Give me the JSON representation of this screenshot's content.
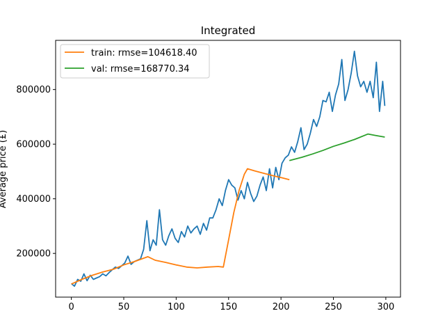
{
  "chart_data": {
    "type": "line",
    "title": "Integrated",
    "xlabel": "",
    "ylabel": "Average price (£)",
    "xlim": [
      -15,
      314
    ],
    "ylim": [
      40000,
      980000
    ],
    "xticks": [
      0,
      50,
      100,
      150,
      200,
      250,
      300
    ],
    "yticks": [
      200000,
      400000,
      600000,
      800000
    ],
    "ytick_labels": [
      "200000",
      "400000",
      "600000",
      "800000"
    ],
    "xtick_labels": [
      "0",
      "50",
      "100",
      "150",
      "200",
      "250",
      "300"
    ],
    "grid": false,
    "legend_position": "top-left",
    "series": [
      {
        "name": "",
        "color": "#1f77b4",
        "x": [
          0,
          3,
          6,
          9,
          12,
          15,
          18,
          21,
          24,
          27,
          30,
          33,
          36,
          39,
          42,
          45,
          48,
          51,
          54,
          57,
          60,
          63,
          66,
          69,
          72,
          75,
          78,
          81,
          84,
          87,
          90,
          93,
          96,
          99,
          102,
          105,
          108,
          111,
          114,
          117,
          120,
          123,
          126,
          129,
          132,
          135,
          138,
          141,
          144,
          147,
          150,
          153,
          156,
          159,
          162,
          165,
          168,
          171,
          174,
          177,
          180,
          183,
          186,
          189,
          192,
          195,
          198,
          201,
          204,
          207,
          210,
          213,
          216,
          219,
          222,
          225,
          228,
          231,
          234,
          237,
          240,
          243,
          246,
          249,
          252,
          255,
          258,
          261,
          264,
          267,
          270,
          273,
          276,
          279,
          282,
          285,
          288,
          291,
          294,
          297,
          299
        ],
        "y": [
          90000,
          80000,
          105000,
          98000,
          125000,
          100000,
          120000,
          105000,
          110000,
          115000,
          125000,
          118000,
          130000,
          140000,
          150000,
          145000,
          155000,
          165000,
          190000,
          160000,
          170000,
          175000,
          180000,
          215000,
          320000,
          210000,
          250000,
          230000,
          360000,
          250000,
          230000,
          265000,
          290000,
          255000,
          240000,
          280000,
          260000,
          300000,
          275000,
          290000,
          300000,
          270000,
          310000,
          285000,
          330000,
          330000,
          360000,
          400000,
          375000,
          430000,
          470000,
          450000,
          440000,
          395000,
          430000,
          400000,
          460000,
          420000,
          390000,
          410000,
          450000,
          480000,
          430000,
          510000,
          440000,
          515000,
          470000,
          530000,
          550000,
          560000,
          590000,
          570000,
          610000,
          660000,
          580000,
          600000,
          640000,
          690000,
          665000,
          700000,
          760000,
          755000,
          790000,
          720000,
          780000,
          820000,
          910000,
          760000,
          800000,
          860000,
          940000,
          850000,
          810000,
          830000,
          790000,
          830000,
          770000,
          900000,
          720000,
          830000,
          740000
        ]
      },
      {
        "name": "train: rmse=104618.40",
        "color": "#ff7f0e",
        "x": [
          0,
          10,
          20,
          30,
          40,
          50,
          60,
          73,
          80,
          90,
          100,
          110,
          120,
          130,
          140,
          145,
          150,
          155,
          160,
          165,
          168,
          175,
          185,
          195,
          200,
          208
        ],
        "y": [
          88000,
          105000,
          120000,
          132000,
          142000,
          158000,
          170000,
          188000,
          175000,
          167000,
          158000,
          150000,
          147000,
          150000,
          152000,
          150000,
          250000,
          350000,
          430000,
          490000,
          510000,
          502000,
          492000,
          482000,
          478000,
          470000
        ]
      },
      {
        "name": "val: rmse=168770.34",
        "color": "#2ca02c",
        "x": [
          208,
          220,
          230,
          240,
          250,
          260,
          270,
          283,
          290,
          299
        ],
        "y": [
          540000,
          552000,
          564000,
          577000,
          592000,
          604000,
          617000,
          637000,
          632000,
          626000
        ]
      }
    ]
  }
}
